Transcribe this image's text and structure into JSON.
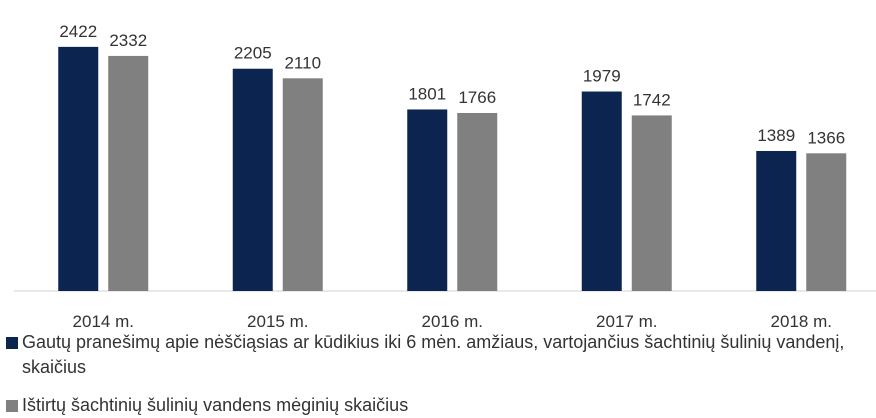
{
  "chart_data": {
    "type": "bar",
    "categories": [
      "2014 m.",
      "2015 m.",
      "2016 m.",
      "2017 m.",
      "2018 m."
    ],
    "series": [
      {
        "name": "Gautų pranešimų apie nėščiąsias ar kūdikius iki 6 mėn. amžiaus, vartojančius šachtinių šulinių vandenį, skaičius",
        "color": "#0b2550",
        "values": [
          2422,
          2205,
          1801,
          1979,
          1389
        ]
      },
      {
        "name": "Ištirtų šachtinių šulinių vandens mėginių  skaičius",
        "color": "#808080",
        "values": [
          2332,
          2110,
          1766,
          1742,
          1366
        ]
      }
    ],
    "ylim": [
      0,
      2500
    ]
  }
}
